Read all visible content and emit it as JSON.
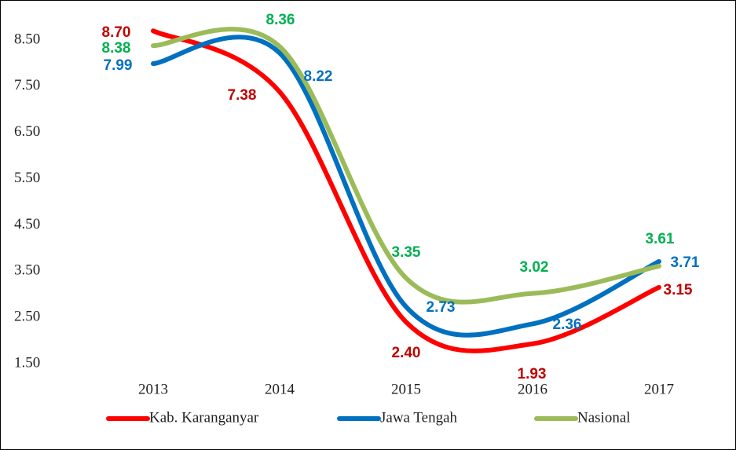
{
  "chart_data": {
    "type": "line",
    "categories": [
      "2013",
      "2014",
      "2015",
      "2016",
      "2017"
    ],
    "series": [
      {
        "name": "Kab. Karanganyar",
        "color": "#ff0000",
        "label_color": "#c00000",
        "values": [
          8.7,
          7.38,
          2.4,
          1.93,
          3.15
        ],
        "value_labels": [
          "8.70",
          "7.38",
          "2.40",
          "1.93",
          "3.15"
        ]
      },
      {
        "name": "Jawa Tengah",
        "color": "#0070c0",
        "label_color": "#0070c0",
        "values": [
          7.99,
          8.22,
          2.73,
          2.36,
          3.71
        ],
        "value_labels": [
          "7.99",
          "8.22",
          "2.73",
          "2.36",
          "3.71"
        ]
      },
      {
        "name": "Nasional",
        "color": "#9bbb59",
        "label_color": "#00b050",
        "values": [
          8.38,
          8.36,
          3.35,
          3.02,
          3.61
        ],
        "value_labels": [
          "8.38",
          "8.36",
          "3.35",
          "3.02",
          "3.61"
        ]
      }
    ],
    "ylim": [
      1.2,
      9.0
    ],
    "yticks": [
      {
        "value": 1.5,
        "label": "1.50"
      },
      {
        "value": 2.5,
        "label": "2.50"
      },
      {
        "value": 3.5,
        "label": "3.50"
      },
      {
        "value": 4.5,
        "label": "4.50"
      },
      {
        "value": 5.5,
        "label": "5.50"
      },
      {
        "value": 6.5,
        "label": "6.50"
      },
      {
        "value": 7.5,
        "label": "7.50"
      },
      {
        "value": 8.5,
        "label": "8.50"
      }
    ],
    "grid": false,
    "smooth": true,
    "legend": "bottom"
  }
}
